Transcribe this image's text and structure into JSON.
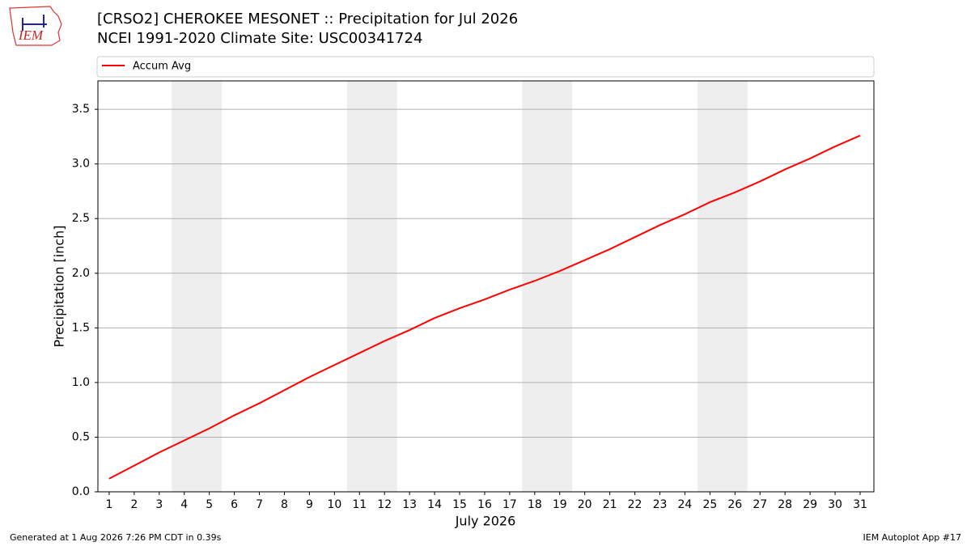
{
  "chart_data": {
    "type": "line",
    "title": "[CRSO2] CHEROKEE MESONET :: Precipitation for Jul 2026",
    "subtitle": "NCEI 1991-2020 Climate Site: USC00341724",
    "logo": "IEM",
    "x_label": "July 2026",
    "y_label": "Precipitation [inch]",
    "footer_left": "Generated at 1 Aug 2026 7:26 PM CDT in 0.39s",
    "footer_right": "IEM Autoplot App #17",
    "x": [
      1,
      2,
      3,
      4,
      5,
      6,
      7,
      8,
      9,
      10,
      11,
      12,
      13,
      14,
      15,
      16,
      17,
      18,
      19,
      20,
      21,
      22,
      23,
      24,
      25,
      26,
      27,
      28,
      29,
      30,
      31
    ],
    "series": [
      {
        "name": "Accum Avg",
        "color": "#ff0000",
        "values": [
          0.12,
          0.24,
          0.36,
          0.47,
          0.58,
          0.7,
          0.81,
          0.93,
          1.05,
          1.16,
          1.27,
          1.38,
          1.48,
          1.59,
          1.68,
          1.76,
          1.85,
          1.93,
          2.02,
          2.12,
          2.22,
          2.33,
          2.44,
          2.54,
          2.65,
          2.74,
          2.84,
          2.95,
          3.05,
          3.16,
          3.26
        ]
      }
    ],
    "shaded_spans": [
      [
        3.5,
        5.5
      ],
      [
        10.5,
        12.5
      ],
      [
        17.5,
        19.5
      ],
      [
        24.5,
        26.5
      ]
    ],
    "shade_color": "#eeeeee",
    "xlim": [
      0.55,
      31.55
    ],
    "ylim": [
      0,
      3.76
    ],
    "xticks": [
      1,
      2,
      3,
      4,
      5,
      6,
      7,
      8,
      9,
      10,
      11,
      12,
      13,
      14,
      15,
      16,
      17,
      18,
      19,
      20,
      21,
      22,
      23,
      24,
      25,
      26,
      27,
      28,
      29,
      30,
      31
    ],
    "yticks": [
      {
        "value": 0,
        "label": "0.0"
      },
      0.5,
      {
        "value": 1,
        "label": "1.0"
      },
      1.5,
      {
        "value": 2,
        "label": "2.0"
      },
      2.5,
      {
        "value": 3,
        "label": "3.0"
      },
      3.5
    ],
    "grid": true,
    "legend": "top"
  }
}
